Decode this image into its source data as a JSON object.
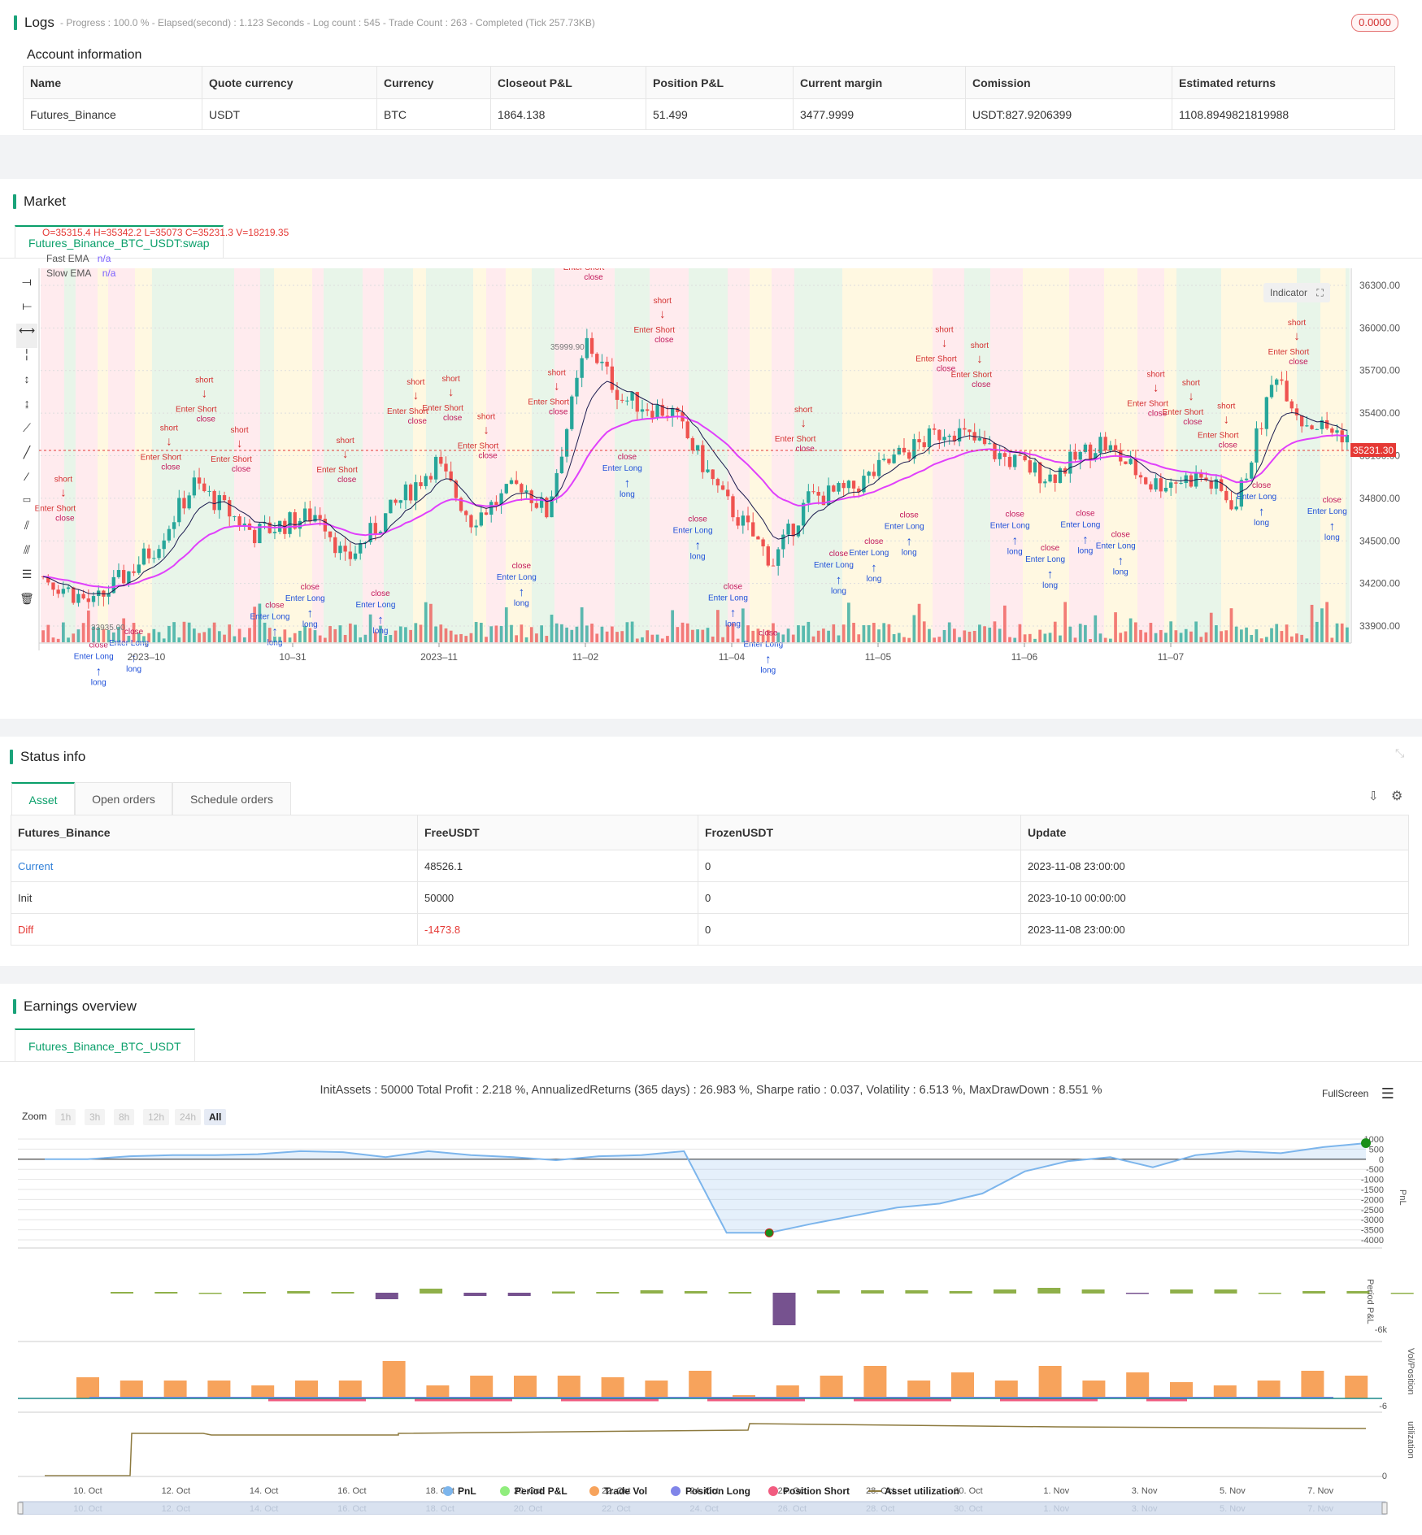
{
  "logs": {
    "title": "Logs",
    "status": "- Progress : 100.0 % - Elapsed(second) : 1.123  Seconds - Log count : 545 - Trade Count : 263 - Completed (Tick 257.73KB)",
    "badge": "0.0000"
  },
  "account": {
    "title": "Account information",
    "headers": [
      "Name",
      "Quote currency",
      "Currency",
      "Closeout P&L",
      "Position P&L",
      "Current margin",
      "Comission",
      "Estimated returns"
    ],
    "row": [
      "Futures_Binance",
      "USDT",
      "BTC",
      "1864.138",
      "51.499",
      "3477.9999",
      "USDT:827.9206399",
      "1108.8949821819988"
    ]
  },
  "market": {
    "title": "Market",
    "tab": "Futures_Binance_BTC_USDT:swap",
    "ohlc": "O=35315.4 H=35342.2 L=35073 C=35231.3 V=18219.35",
    "legend": [
      {
        "name": "Fast EMA",
        "value": "n/a"
      },
      {
        "name": "Slow EMA",
        "value": "n/a"
      }
    ],
    "indicator_btn": "Indicator",
    "price_label": "35231.30",
    "hi_label": "35999.90",
    "lo_label": "33935.00",
    "y_ticks": [
      "36300.00",
      "36000.00",
      "35700.00",
      "35400.00",
      "35100.00",
      "34800.00",
      "34500.00",
      "34200.00",
      "33900.00"
    ],
    "x_ticks": [
      "2023–10",
      "10–31",
      "2023–11",
      "11–02",
      "11–04",
      "11–05",
      "11–06",
      "11–07"
    ],
    "signal_labels": {
      "short": "short",
      "long": "long",
      "close": "close",
      "enter_short": "Enter Short",
      "enter_long": "Enter Long",
      "one": "1"
    },
    "colors": {
      "up": "#26a69a",
      "down": "#ef5350",
      "fast": "#1a1a4e",
      "slow": "#e040fb",
      "short": "#d32f2f",
      "long": "#1e4fd8"
    }
  },
  "status": {
    "title": "Status info",
    "tabs": [
      "Asset",
      "Open orders",
      "Schedule orders"
    ],
    "headers": [
      "Futures_Binance",
      "FreeUSDT",
      "FrozenUSDT",
      "Update"
    ],
    "rows": [
      [
        "Current",
        "48526.1",
        "0",
        "2023-11-08 23:00:00"
      ],
      [
        "Init",
        "50000",
        "0",
        "2023-10-10 00:00:00"
      ],
      [
        "Diff",
        "-1473.8",
        "0",
        "2023-11-08 23:00:00"
      ]
    ]
  },
  "earnings": {
    "title": "Earnings overview",
    "tab": "Futures_Binance_BTC_USDT",
    "summary": "InitAssets : 50000 Total Profit : 2.218 %, AnnualizedReturns (365 days) : 26.983 %, Sharpe ratio : 0.037, Volatility : 6.513 %, MaxDrawDown : 8.551 %",
    "fullscreen": "FullScreen",
    "zoom_label": "Zoom",
    "zoom_options": [
      "1h",
      "3h",
      "8h",
      "12h",
      "24h",
      "All"
    ],
    "pnl_ticks": [
      "1000",
      "500",
      "0",
      "-500",
      "-1000",
      "-1500",
      "-2000",
      "-2500",
      "-3000",
      "-3500",
      "-4000"
    ],
    "axis_titles": [
      "PnL",
      "Period P&L",
      "Vol/Position",
      "utilization"
    ],
    "period_tick": "-6k",
    "vol_tick": "-6",
    "util_tick": "0",
    "x_ticks": [
      "10. Oct",
      "12. Oct",
      "14. Oct",
      "16. Oct",
      "18. Oct",
      "20. Oct",
      "22. Oct",
      "24. Oct",
      "26. Oct",
      "28. Oct",
      "30. Oct",
      "1. Nov",
      "3. Nov",
      "5. Nov",
      "7. Nov"
    ],
    "legend": [
      {
        "name": "PnL",
        "color": "#7cb5ec"
      },
      {
        "name": "Period P&L",
        "color": "#90ed7d"
      },
      {
        "name": "Trade Vol",
        "color": "#f7a35c"
      },
      {
        "name": "Position Long",
        "color": "#8085e9"
      },
      {
        "name": "Position Short",
        "color": "#f15c80"
      },
      {
        "name": "Asset utilization",
        "color": "#8d7a3f"
      }
    ],
    "chart_data": {
      "type": "line",
      "series": [
        {
          "name": "PnL",
          "values": [
            0,
            0,
            150,
            200,
            200,
            250,
            400,
            350,
            100,
            400,
            200,
            100,
            -50,
            150,
            200,
            400,
            -3650,
            -3650,
            -3200,
            -2800,
            -2400,
            -2200,
            -1700,
            -600,
            -100,
            100,
            -400,
            200,
            400,
            300,
            600,
            800
          ]
        }
      ],
      "ylim": [
        -4000,
        1000
      ]
    }
  }
}
